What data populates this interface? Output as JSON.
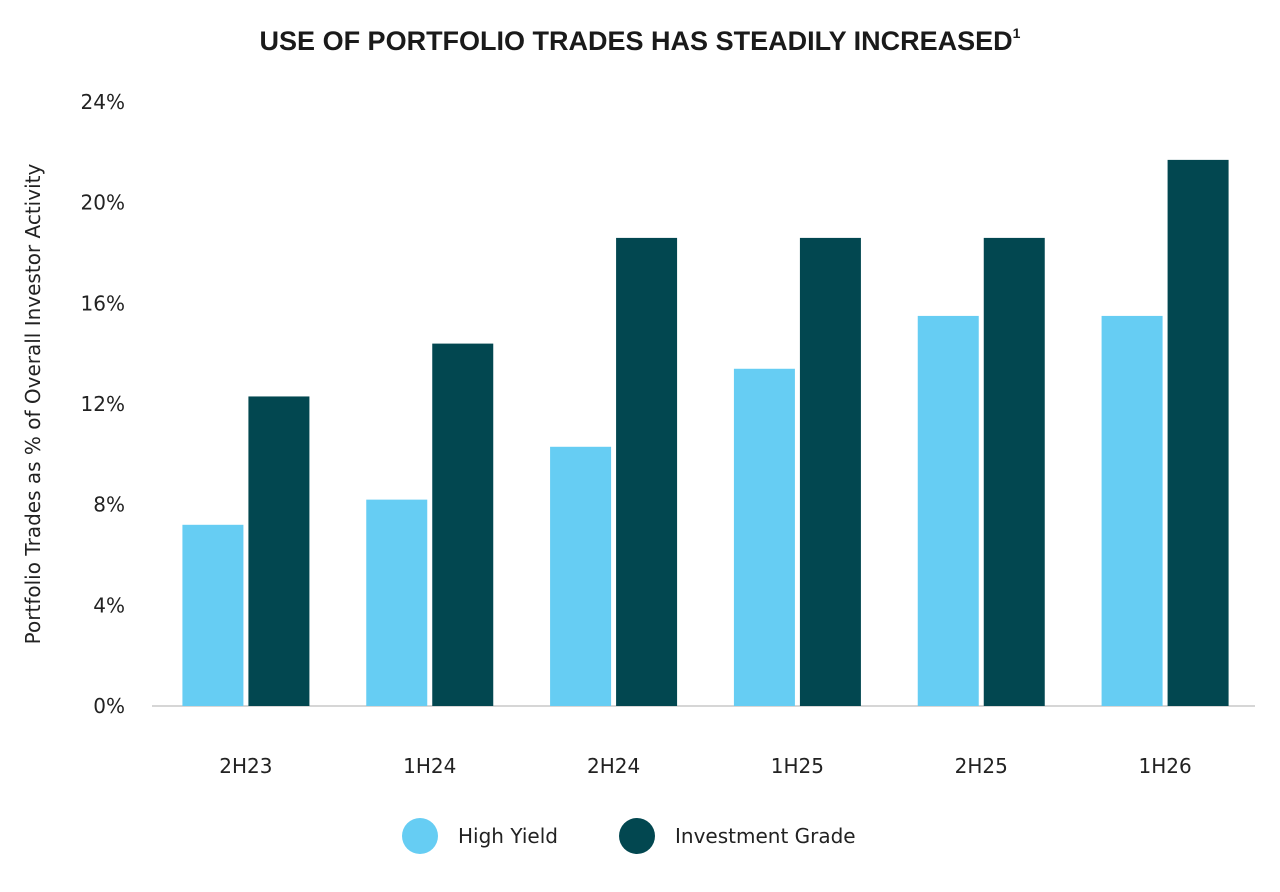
{
  "chart_data": {
    "type": "bar",
    "title": "USE OF PORTFOLIO TRADES HAS STEADILY INCREASED",
    "title_footnote": "1",
    "xlabel": "",
    "ylabel": "Portfolio Trades as % of  Overall Investor Activity",
    "categories": [
      "2H23",
      "1H24",
      "2H24",
      "1H25",
      "2H25",
      "1H26"
    ],
    "series": [
      {
        "name": "High Yield",
        "color": "#66CDF3",
        "values": [
          7.2,
          8.2,
          10.3,
          13.4,
          15.5,
          15.5
        ]
      },
      {
        "name": "Investment Grade",
        "color": "#024750",
        "values": [
          12.3,
          14.4,
          18.6,
          18.6,
          18.6,
          21.7
        ]
      }
    ],
    "ylim": [
      0,
      24
    ],
    "yticks": [
      0,
      4,
      8,
      12,
      16,
      20,
      24
    ],
    "ytick_labels": [
      "0%",
      "4%",
      "8%",
      "12%",
      "16%",
      "20%",
      "24%"
    ],
    "grid": false,
    "legend_position": "bottom-center"
  }
}
